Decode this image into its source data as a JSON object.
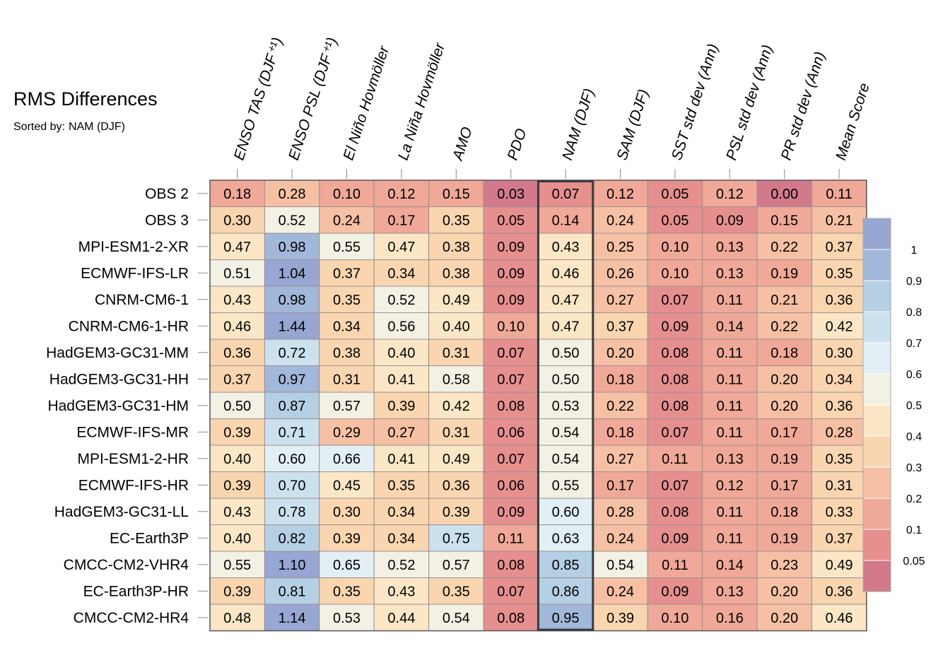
{
  "title": "RMS Differences",
  "sorted_by": {
    "label": "Sorted by:",
    "value": "NAM (DJF)"
  },
  "chart_data": {
    "type": "heatmap",
    "columns": [
      "ENSO TAS (DJF⁺¹)",
      "ENSO PSL (DJF⁺¹)",
      "El Niño Hovmöller",
      "La Niña Hovmöller",
      "AMO",
      "PDO",
      "NAM (DJF)",
      "SAM (DJF)",
      "SST std dev (Ann)",
      "PSL std dev (Ann)",
      "PR std dev (Ann)",
      "Mean Score"
    ],
    "rows": [
      "OBS 2",
      "OBS 3",
      "MPI-ESM1-2-XR",
      "ECMWF-IFS-LR",
      "CNRM-CM6-1",
      "CNRM-CM6-1-HR",
      "HadGEM3-GC31-MM",
      "HadGEM3-GC31-HH",
      "HadGEM3-GC31-HM",
      "ECMWF-IFS-MR",
      "MPI-ESM1-2-HR",
      "ECMWF-IFS-HR",
      "HadGEM3-GC31-LL",
      "EC-Earth3P",
      "CMCC-CM2-VHR4",
      "EC-Earth3P-HR",
      "CMCC-CM2-HR4"
    ],
    "values": [
      [
        0.18,
        0.28,
        0.1,
        0.12,
        0.15,
        0.03,
        0.07,
        0.12,
        0.05,
        0.12,
        0.0,
        0.11
      ],
      [
        0.3,
        0.52,
        0.24,
        0.17,
        0.35,
        0.05,
        0.14,
        0.24,
        0.05,
        0.09,
        0.15,
        0.21
      ],
      [
        0.47,
        0.98,
        0.55,
        0.47,
        0.38,
        0.09,
        0.43,
        0.25,
        0.1,
        0.13,
        0.22,
        0.37
      ],
      [
        0.51,
        1.04,
        0.37,
        0.34,
        0.38,
        0.09,
        0.46,
        0.26,
        0.1,
        0.13,
        0.19,
        0.35
      ],
      [
        0.43,
        0.98,
        0.35,
        0.52,
        0.49,
        0.09,
        0.47,
        0.27,
        0.07,
        0.11,
        0.21,
        0.36
      ],
      [
        0.46,
        1.44,
        0.34,
        0.56,
        0.4,
        0.1,
        0.47,
        0.37,
        0.09,
        0.14,
        0.22,
        0.42
      ],
      [
        0.36,
        0.72,
        0.38,
        0.4,
        0.31,
        0.07,
        0.5,
        0.2,
        0.08,
        0.11,
        0.18,
        0.3
      ],
      [
        0.37,
        0.97,
        0.31,
        0.41,
        0.58,
        0.07,
        0.5,
        0.18,
        0.08,
        0.11,
        0.2,
        0.34
      ],
      [
        0.5,
        0.87,
        0.57,
        0.39,
        0.42,
        0.08,
        0.53,
        0.22,
        0.08,
        0.11,
        0.2,
        0.36
      ],
      [
        0.39,
        0.71,
        0.29,
        0.27,
        0.31,
        0.06,
        0.54,
        0.18,
        0.07,
        0.11,
        0.17,
        0.28
      ],
      [
        0.4,
        0.6,
        0.66,
        0.41,
        0.49,
        0.07,
        0.54,
        0.27,
        0.11,
        0.13,
        0.19,
        0.35
      ],
      [
        0.39,
        0.7,
        0.45,
        0.35,
        0.36,
        0.06,
        0.55,
        0.17,
        0.07,
        0.12,
        0.17,
        0.31
      ],
      [
        0.43,
        0.78,
        0.3,
        0.34,
        0.39,
        0.09,
        0.6,
        0.28,
        0.08,
        0.11,
        0.18,
        0.33
      ],
      [
        0.4,
        0.82,
        0.39,
        0.34,
        0.75,
        0.11,
        0.63,
        0.24,
        0.09,
        0.11,
        0.19,
        0.37
      ],
      [
        0.55,
        1.1,
        0.65,
        0.52,
        0.57,
        0.08,
        0.85,
        0.54,
        0.11,
        0.14,
        0.23,
        0.49
      ],
      [
        0.39,
        0.81,
        0.35,
        0.43,
        0.35,
        0.07,
        0.86,
        0.24,
        0.09,
        0.13,
        0.2,
        0.36
      ],
      [
        0.48,
        1.14,
        0.53,
        0.44,
        0.54,
        0.08,
        0.95,
        0.39,
        0.1,
        0.16,
        0.2,
        0.46
      ]
    ],
    "highlighted_column": "NAM (DJF)",
    "colorbar": {
      "ticks": [
        "1",
        "0.9",
        "0.8",
        "0.7",
        "0.6",
        "0.5",
        "0.4",
        "0.3",
        "0.2",
        "0.1",
        "0.05"
      ],
      "levels": [
        0.05,
        0.1,
        0.2,
        0.3,
        0.4,
        0.5,
        0.6,
        0.7,
        0.8,
        0.9,
        1
      ],
      "colors": [
        "#d27a8c",
        "#e58f8e",
        "#f0a898",
        "#f6c0a4",
        "#f9d5b0",
        "#fbe6c6",
        "#f3f1e4",
        "#e2eff4",
        "#cce1ee",
        "#b5cfe4",
        "#a2b8da",
        "#97a6d2"
      ]
    },
    "legend_position": "right"
  }
}
